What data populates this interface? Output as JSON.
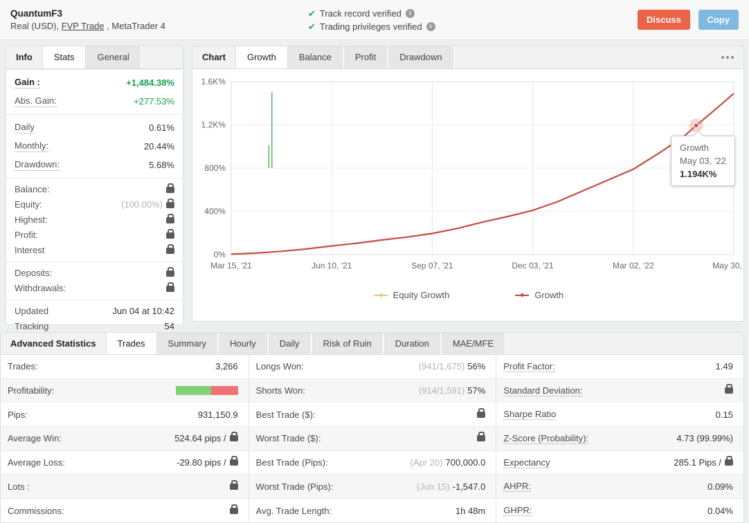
{
  "header": {
    "account_name": "QuantumF3",
    "account_type_prefix": "Real (USD), ",
    "broker": "FVP Trade",
    "platform_suffix": " , MetaTrader 4",
    "verified_track": "Track record verified",
    "verified_privileges": "Trading privileges verified",
    "discuss_label": "Discuss",
    "copy_label": "Copy",
    "colors": {
      "discuss": "#EC6445",
      "copy": "#7EB9E2",
      "verified_check": "#2EA44F"
    }
  },
  "info_panel": {
    "tab_info": "Info",
    "tab_stats": "Stats",
    "tab_general": "General",
    "rows": {
      "gain_label": "Gain :",
      "gain_value": "+1,484.38%",
      "abs_gain_label": "Abs. Gain:",
      "abs_gain_value": "+277.53%",
      "daily_label": "Daily",
      "daily_value": "0.61%",
      "monthly_label": "Monthly:",
      "monthly_value": "20.44%",
      "drawdown_label": "Drawdown:",
      "drawdown_value": "5.68%",
      "balance_label": "Balance:",
      "equity_label": "Equity:",
      "equity_value": "(100.00%)",
      "highest_label": "Highest:",
      "profit_label": "Profit:",
      "interest_label": "Interest",
      "deposits_label": "Deposits:",
      "withdrawals_label": "Withdrawals:",
      "updated_label": "Updated",
      "updated_value": "Jun 04 at 10:42",
      "tracking_label": "Tracking",
      "tracking_value": "54"
    },
    "colors": {
      "gain_green": "#15A24A"
    }
  },
  "chart_panel": {
    "tab_chart": "Chart",
    "tab_growth": "Growth",
    "tab_balance": "Balance",
    "tab_profit": "Profit",
    "tab_drawdown": "Drawdown",
    "tooltip": {
      "series": "Growth",
      "date": "May 03, '22",
      "value": "1.194K%"
    },
    "legend_equity": "Equity Growth",
    "legend_growth": "Growth"
  },
  "chart_data": {
    "type": "line",
    "title": "Growth",
    "ylim": [
      0,
      1600
    ],
    "y_ticks": [
      {
        "label": "1.6K%",
        "value": 1600
      },
      {
        "label": "1.2K%",
        "value": 1200
      },
      {
        "label": "800%",
        "value": 800
      },
      {
        "label": "400%",
        "value": 400
      },
      {
        "label": "0%",
        "value": 0
      }
    ],
    "x_ticks": [
      "Mar 15, '21",
      "Jun 10, '21",
      "Sep 07, '21",
      "Dec 03, '21",
      "Mar 02, '22",
      "May 30, '22"
    ],
    "grid": true,
    "legend_position": "bottom",
    "series": [
      {
        "name": "Growth",
        "color": "#C94A3E",
        "points": [
          [
            0,
            4
          ],
          [
            0.05,
            14
          ],
          [
            0.1,
            30
          ],
          [
            0.15,
            52
          ],
          [
            0.2,
            80
          ],
          [
            0.25,
            105
          ],
          [
            0.3,
            135
          ],
          [
            0.35,
            162
          ],
          [
            0.4,
            195
          ],
          [
            0.45,
            242
          ],
          [
            0.5,
            300
          ],
          [
            0.55,
            352
          ],
          [
            0.6,
            409
          ],
          [
            0.65,
            490
          ],
          [
            0.7,
            590
          ],
          [
            0.75,
            690
          ],
          [
            0.8,
            790
          ],
          [
            0.85,
            935
          ],
          [
            0.9,
            1090
          ],
          [
            0.925,
            1194
          ],
          [
            0.95,
            1290
          ],
          [
            0.975,
            1390
          ],
          [
            1,
            1490
          ]
        ]
      },
      {
        "name": "Equity Growth",
        "color": "#4CAF50",
        "spikes": [
          {
            "x": 0.075,
            "y0": 800,
            "y1": 1010
          },
          {
            "x": 0.081,
            "y0": 800,
            "y1": 1500
          }
        ]
      }
    ],
    "highlight": {
      "x": 0.925,
      "y": 1194,
      "label": "1.194K%",
      "date": "May 03, '22"
    }
  },
  "stats_panel": {
    "tab_title": "Advanced Statistics",
    "tab_trades": "Trades",
    "tab_summary": "Summary",
    "tab_hourly": "Hourly",
    "tab_daily": "Daily",
    "tab_risk": "Risk of Ruin",
    "tab_duration": "Duration",
    "tab_maemfe": "MAE/MFE",
    "col1": {
      "trades_label": "Trades:",
      "trades_value": "3,266",
      "profitability_label": "Profitability:",
      "profitability_bar": {
        "won_pct": 57,
        "lost_pct": 43,
        "won_color": "#82D173",
        "lost_color": "#EF7173"
      },
      "pips_label": "Pips:",
      "pips_value": "931,150.9",
      "avg_win_label": "Average Win:",
      "avg_win_value": "524.64 pips /",
      "avg_loss_label": "Average Loss:",
      "avg_loss_value": "-29.80 pips /",
      "lots_label": "Lots :",
      "commissions_label": "Commissions:"
    },
    "col2": {
      "longs_label": "Longs Won:",
      "longs_pre": "(941/1,675)",
      "longs_value": "56%",
      "shorts_label": "Shorts Won:",
      "shorts_pre": "(914/1,591)",
      "shorts_value": "57%",
      "best_usd_label": "Best Trade ($):",
      "worst_usd_label": "Worst Trade ($):",
      "best_pips_label": "Best Trade (Pips):",
      "best_pips_pre": "(Apr 20)",
      "best_pips_value": "700,000.0",
      "worst_pips_label": "Worst Trade (Pips):",
      "worst_pips_pre": "(Jun 15)",
      "worst_pips_value": "-1,547.0",
      "avg_len_label": "Avg. Trade Length:",
      "avg_len_value": "1h 48m"
    },
    "col3": {
      "pf_label": "Profit Factor:",
      "pf_value": "1.49",
      "std_label": "Standard Deviation:",
      "sharpe_label": "Sharpe Ratio",
      "sharpe_value": "0.15",
      "zscore_label": "Z-Score (Probability):",
      "zscore_value": "4.73 (99.99%)",
      "expectancy_label": "Expectancy",
      "expectancy_value": "285.1 Pips /",
      "ahpr_label": "AHPR:",
      "ahpr_value": "0.09%",
      "ghpr_label": "GHPR:",
      "ghpr_value": "0.04%"
    }
  }
}
